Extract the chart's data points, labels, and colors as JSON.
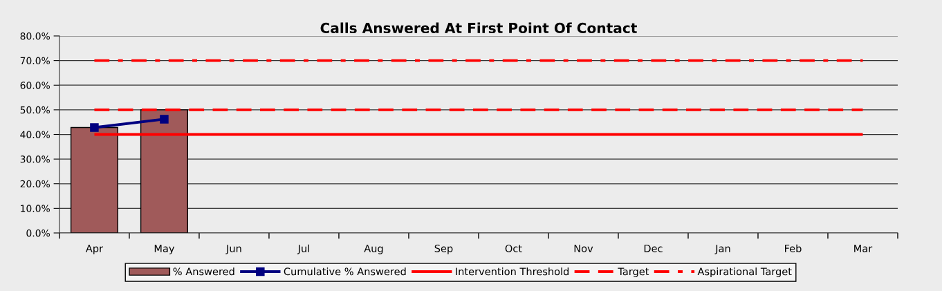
{
  "chart_data": {
    "type": "bar",
    "title": "Calls Answered At First Point Of Contact",
    "categories": [
      "Apr",
      "May",
      "Jun",
      "Jul",
      "Aug",
      "Sep",
      "Oct",
      "Nov",
      "Dec",
      "Jan",
      "Feb",
      "Mar"
    ],
    "series": [
      {
        "name": "% Answered",
        "color": "#a05a5a",
        "values": [
          42.8,
          50.0,
          null,
          null,
          null,
          null,
          null,
          null,
          null,
          null,
          null,
          null
        ]
      },
      {
        "name": "Cumulative % Answered",
        "type": "line",
        "color": "#000080",
        "marker": "square",
        "line_style": "solid",
        "values": [
          42.8,
          46.2,
          null,
          null,
          null,
          null,
          null,
          null,
          null,
          null,
          null,
          null
        ]
      },
      {
        "name": "Intervention Threshold",
        "type": "line",
        "color": "#ff0000",
        "line_style": "solid",
        "values": [
          40,
          40,
          40,
          40,
          40,
          40,
          40,
          40,
          40,
          40,
          40,
          40
        ]
      },
      {
        "name": "Target",
        "type": "line",
        "color": "#ff0000",
        "line_style": "dashed",
        "values": [
          50,
          50,
          50,
          50,
          50,
          50,
          50,
          50,
          50,
          50,
          50,
          50
        ]
      },
      {
        "name": "Aspirational Target",
        "type": "line",
        "color": "#ff0000",
        "line_style": "dashdot",
        "values": [
          70,
          70,
          70,
          70,
          70,
          70,
          70,
          70,
          70,
          70,
          70,
          70
        ]
      }
    ],
    "ylim": [
      0,
      80
    ],
    "yticks": [
      {
        "value": 0,
        "label": "0.0%"
      },
      {
        "value": 10,
        "label": "10.0%"
      },
      {
        "value": 20,
        "label": "20.0%"
      },
      {
        "value": 30,
        "label": "30.0%"
      },
      {
        "value": 40,
        "label": "40.0%"
      },
      {
        "value": 50,
        "label": "50.0%"
      },
      {
        "value": 60,
        "label": "60.0%"
      },
      {
        "value": 70,
        "label": "70.0%"
      },
      {
        "value": 80,
        "label": "80.0%"
      }
    ],
    "grid": "y",
    "legend": "bottom"
  }
}
